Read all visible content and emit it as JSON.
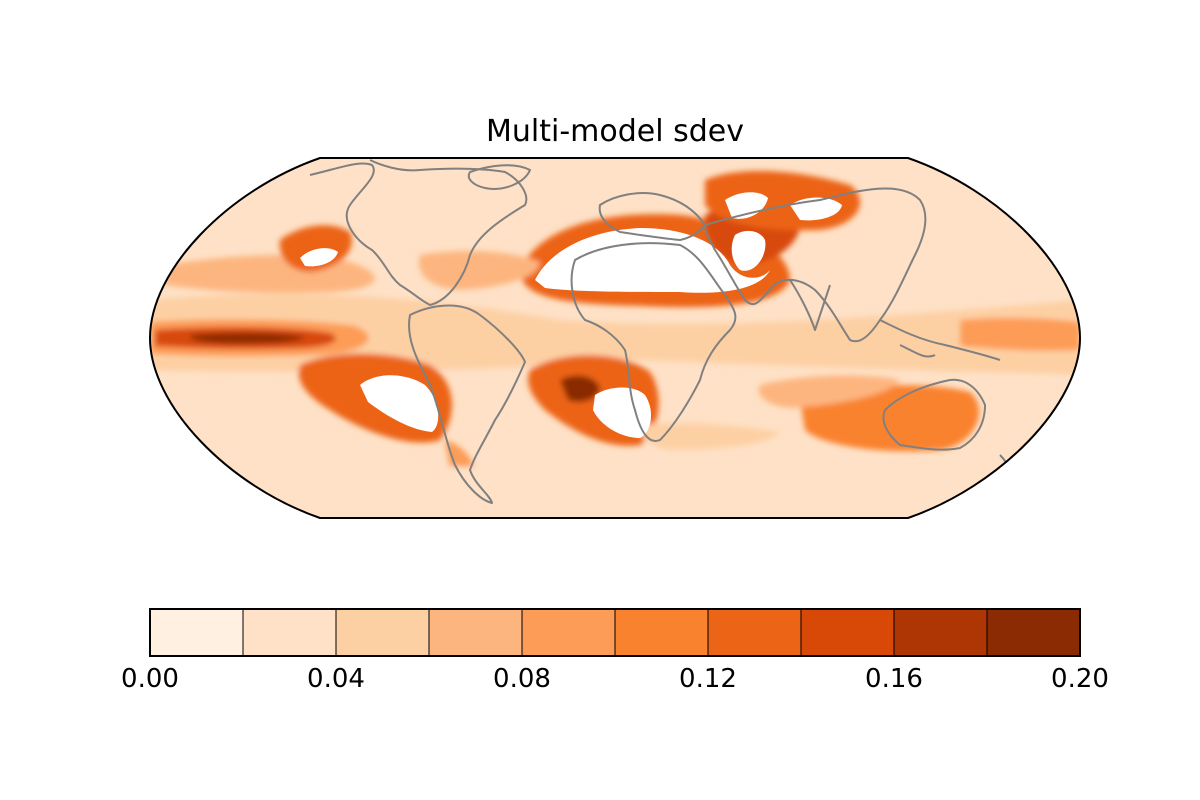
{
  "title": "Multi-model sdev",
  "colorbar": {
    "levels": [
      0.0,
      0.02,
      0.04,
      0.06,
      0.08,
      0.1,
      0.12,
      0.14,
      0.16,
      0.18,
      0.2
    ],
    "colors": [
      "#fff0e2",
      "#fee1c6",
      "#fdd0a4",
      "#fdb57f",
      "#fd9c57",
      "#f9822f",
      "#ec6415",
      "#d84807",
      "#ae3504",
      "#8a2b04"
    ],
    "tick_labels": [
      "0.00",
      "0.04",
      "0.08",
      "0.12",
      "0.16",
      "0.20"
    ],
    "tick_values": [
      0.0,
      0.04,
      0.08,
      0.12,
      0.16,
      0.2
    ]
  },
  "map": {
    "projection": "robinson",
    "background_level_color": "#fee1c6",
    "coastline_color": "#808080",
    "missing_color": "#ffffff"
  }
}
